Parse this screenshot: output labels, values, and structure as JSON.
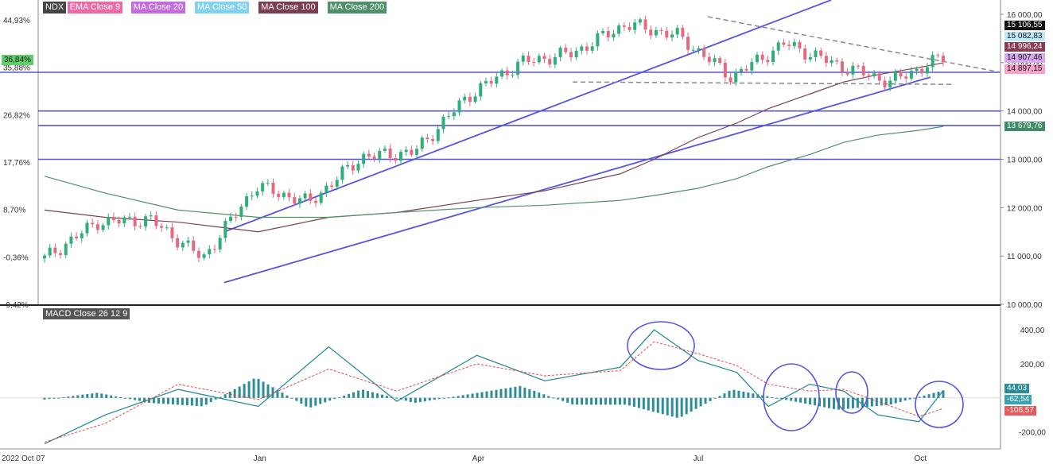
{
  "legend": [
    {
      "label": "NDX",
      "color": "#444444"
    },
    {
      "label": "EMA Close 9",
      "color": "#ee6aa7"
    },
    {
      "label": "MA Close 20",
      "color": "#c36be0"
    },
    {
      "label": "MA Close 50",
      "color": "#7fd3ee"
    },
    {
      "label": "MA Close 100",
      "color": "#7a3f4f"
    },
    {
      "label": "MA Close 200",
      "color": "#4f8f6a"
    }
  ],
  "macd_title": "MACD Close 26 12 9",
  "price_axis_labels": [
    "16 000,00",
    "15 000,00",
    "14 000,00",
    "13 000,00",
    "12 000,00",
    "11 000,00",
    "10 000,00"
  ],
  "percent_axis_labels": [
    "44,93%",
    "35,88%",
    "26,82%",
    "17,76%",
    "8,70%",
    "-0,36%",
    "-9,42%"
  ],
  "percent_current": "36,84%",
  "macd_axis_labels": [
    "400,00",
    "200,00",
    "-200,00"
  ],
  "date_labels": [
    "2022 Oct 07",
    "Jan",
    "Apr",
    "Jul",
    "Oct"
  ],
  "price_tags": [
    {
      "label": "15 106,55",
      "color": "#111111",
      "text": "#ffffff"
    },
    {
      "label": "15 082,83",
      "color": "#bfe8f8",
      "text": "#111111"
    },
    {
      "label": "14 996,24",
      "color": "#8b3a55",
      "text": "#ffffff"
    },
    {
      "label": "14 907,46",
      "color": "#d9a8f0",
      "text": "#111111"
    },
    {
      "label": "14 897,15",
      "color": "#f6a3c9",
      "text": "#111111"
    },
    {
      "label": "13 679,76",
      "color": "#3e8b6a",
      "text": "#ffffff"
    }
  ],
  "macd_tags": [
    {
      "label": "44,03",
      "color": "#2b8c9a",
      "text": "#ffffff"
    },
    {
      "label": "-62,54",
      "color": "#3aa3b3",
      "text": "#ffffff"
    },
    {
      "label": "-106,57",
      "color": "#e85a5a",
      "text": "#ffffff"
    }
  ],
  "colors": {
    "up": "#2fae7a",
    "down": "#e46a7f",
    "trend": "#5555dd",
    "signal": "#e64b4b",
    "macd": "#2b8c9a",
    "hist": "#2b8c9a"
  },
  "chart_data": {
    "type": "line",
    "title": "NDX",
    "x": [
      "2022-10-07",
      "2022-11-01",
      "2022-12-01",
      "2023-01-03",
      "2023-02-01",
      "2023-03-01",
      "2023-04-03",
      "2023-05-01",
      "2023-06-01",
      "2023-06-15",
      "2023-07-03",
      "2023-07-19",
      "2023-08-01",
      "2023-08-18",
      "2023-09-01",
      "2023-09-15",
      "2023-10-02",
      "2023-10-12"
    ],
    "ylim": [
      10000,
      16000
    ],
    "series": [
      {
        "name": "NDX",
        "values": [
          10950,
          11700,
          11750,
          10950,
          12450,
          12100,
          13050,
          13150,
          14300,
          15000,
          15200,
          15800,
          15550,
          14700,
          15400,
          14950,
          14600,
          15106.55
        ]
      },
      {
        "name": "MA Close 100",
        "values": [
          11950,
          11800,
          11700,
          11500,
          11800,
          11900,
          12150,
          12350,
          12700,
          13000,
          13450,
          13750,
          14050,
          14350,
          14600,
          14750,
          14900,
          14996.24
        ]
      },
      {
        "name": "MA Close 200",
        "values": [
          12650,
          12300,
          11950,
          11800,
          11800,
          11900,
          12000,
          12050,
          12150,
          12250,
          12400,
          12600,
          12850,
          13100,
          13350,
          13500,
          13600,
          13679.76
        ]
      }
    ],
    "macd": {
      "ylim": [
        -300,
        480
      ],
      "values": [
        -270,
        -100,
        50,
        -50,
        300,
        -20,
        250,
        100,
        180,
        400,
        220,
        150,
        -50,
        80,
        40,
        -100,
        -140,
        44.03
      ],
      "signal": [
        -260,
        -150,
        80,
        -10,
        170,
        40,
        200,
        130,
        160,
        330,
        260,
        190,
        80,
        40,
        50,
        -20,
        -110,
        -62.54
      ],
      "hist": [
        -10,
        30,
        -30,
        -50,
        120,
        -60,
        50,
        -30,
        20,
        70,
        -40,
        -40,
        -120,
        50,
        -10,
        -70,
        -40,
        44.03
      ]
    }
  }
}
